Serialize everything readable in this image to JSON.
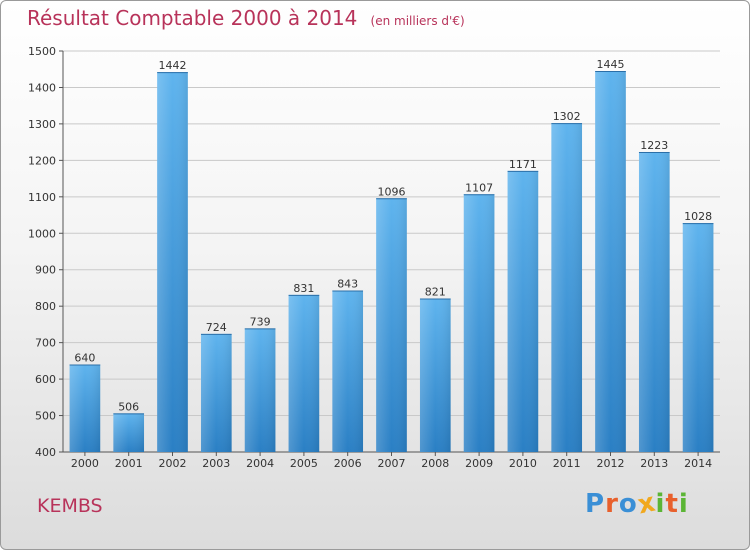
{
  "title": "Résultat Comptable 2000 à 2014",
  "unit": "(en milliers d'€)",
  "commune": "KEMBS",
  "logo": {
    "text": "Proxiti",
    "colors": [
      "#3a8fd6",
      "#e8602c",
      "#3a8fd6",
      "#f1a81d",
      "#5bb535",
      "#e8602c",
      "#5bb535"
    ]
  },
  "chart_data": {
    "type": "bar",
    "title": "Résultat Comptable 2000 à 2014",
    "subtitle": "(en milliers d'€)",
    "categories": [
      "2000",
      "2001",
      "2002",
      "2003",
      "2004",
      "2005",
      "2006",
      "2007",
      "2008",
      "2009",
      "2010",
      "2011",
      "2012",
      "2013",
      "2014"
    ],
    "values": [
      640,
      506,
      1442,
      724,
      739,
      831,
      843,
      1096,
      821,
      1107,
      1171,
      1302,
      1445,
      1223,
      1028
    ],
    "ylim": [
      400,
      1500
    ],
    "yticks": [
      400,
      500,
      600,
      700,
      800,
      900,
      1000,
      1100,
      1200,
      1300,
      1400,
      1500
    ],
    "grid": true,
    "bar_color": "#4aa3e6",
    "xlabel": "",
    "ylabel": ""
  }
}
